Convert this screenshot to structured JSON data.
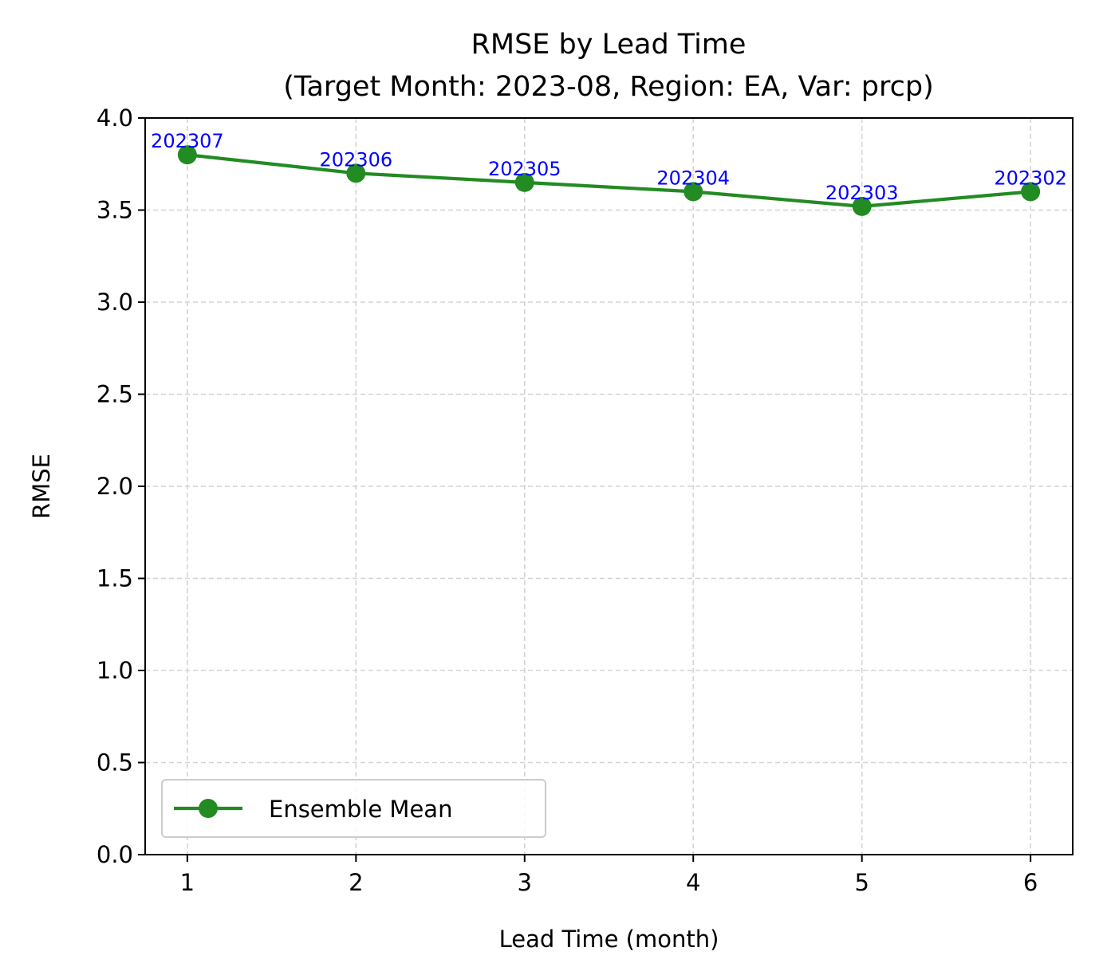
{
  "chart_data": {
    "type": "line",
    "title": [
      "RMSE by Lead Time",
      "(Target Month: 2023-08, Region: EA, Var: prcp)"
    ],
    "xlabel": "Lead Time (month)",
    "ylabel": "RMSE",
    "x": [
      1,
      2,
      3,
      4,
      5,
      6
    ],
    "xlim": [
      0.75,
      6.25
    ],
    "ylim": [
      0.0,
      4.0
    ],
    "xticks": [
      1,
      2,
      3,
      4,
      5,
      6
    ],
    "xtick_labels": [
      "1",
      "2",
      "3",
      "4",
      "5",
      "6"
    ],
    "yticks": [
      0.0,
      0.5,
      1.0,
      1.5,
      2.0,
      2.5,
      3.0,
      3.5,
      4.0
    ],
    "ytick_labels": [
      "0.0",
      "0.5",
      "1.0",
      "1.5",
      "2.0",
      "2.5",
      "3.0",
      "3.5",
      "4.0"
    ],
    "grid": true,
    "series": [
      {
        "name": "Ensemble Mean",
        "color": "#228b22",
        "marker": "circle",
        "values": [
          3.8,
          3.7,
          3.65,
          3.6,
          3.52,
          3.6
        ],
        "point_labels": [
          "202307",
          "202306",
          "202305",
          "202304",
          "202303",
          "202302"
        ],
        "point_label_color": "#0000ff"
      }
    ],
    "legend": {
      "position": "lower-left",
      "entries": [
        "Ensemble Mean"
      ]
    }
  }
}
